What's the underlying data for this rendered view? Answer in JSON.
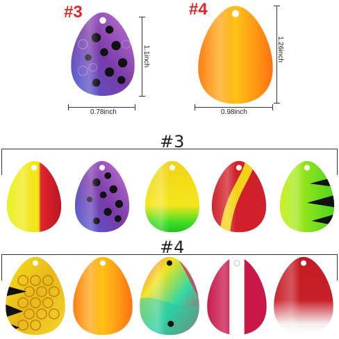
{
  "top": {
    "label_3": "#3",
    "label_4": "#4",
    "dim_3_height": "1.1inch",
    "dim_3_width": "0.78inch",
    "dim_4_height": "1.26inch",
    "dim_4_width": "0.98inch"
  },
  "rows": {
    "row1_title": "#3",
    "row2_title": "#4"
  },
  "colors": {
    "label_red": "#e0262b"
  }
}
